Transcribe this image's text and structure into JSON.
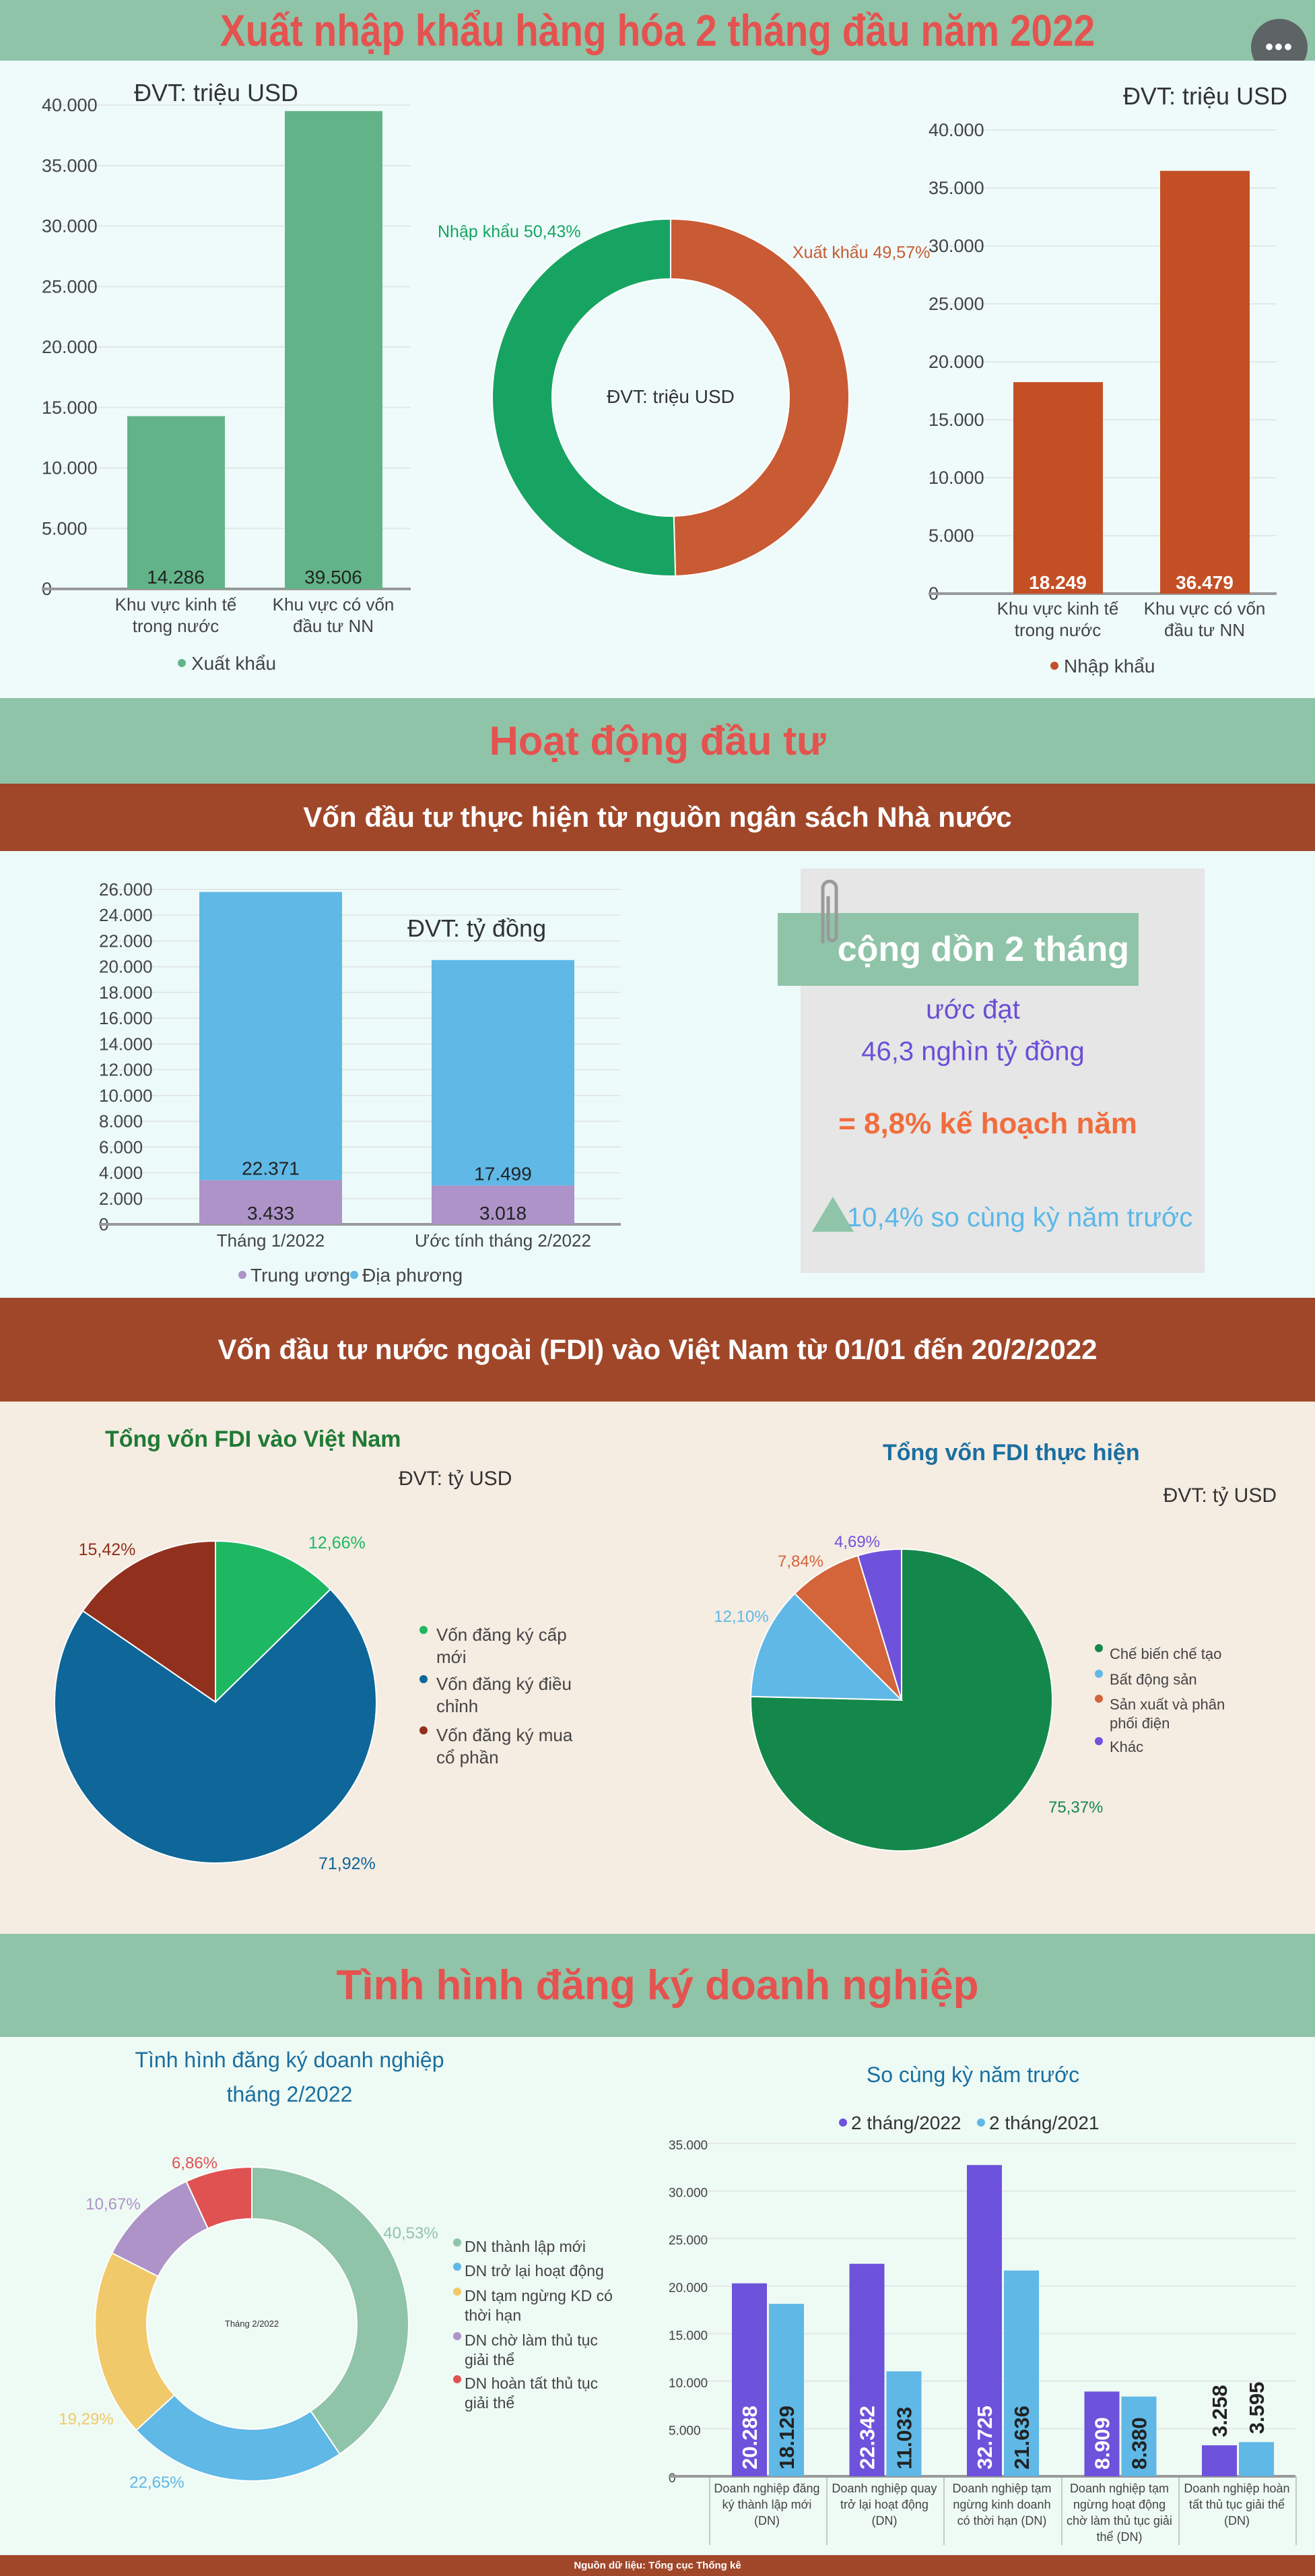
{
  "header": {
    "title": "Xuất nhập khẩu hàng hóa 2 tháng đầu năm 2022",
    "more_label": "•••"
  },
  "section_invest": {
    "title": "Hoạt động đầu tư",
    "subtitle": "Vốn đầu tư thực hiện từ nguồn ngân sách Nhà nước"
  },
  "info_box": {
    "label": "cộng dồn 2 tháng",
    "line1": "ước đạt",
    "line2": "46,3 nghìn tỷ đồng",
    "line3": "= 8,8% kế hoạch năm",
    "line4": "10,4% so cùng kỳ năm trước"
  },
  "section_fdi": {
    "title": "Vốn đầu tư nước ngoài (FDI) vào Việt Nam từ 01/01 đến 20/2/2022"
  },
  "section_business": {
    "title": "Tình hình đăng ký doanh nghiệp"
  },
  "footer": {
    "source": "Nguồn dữ liệu: Tổng cục Thống kê"
  },
  "colors": {
    "green_band": "#8fc4a8",
    "brown_band": "#a0472a",
    "title_red": "#e4534f"
  },
  "chart_data": [
    {
      "id": "export-bars",
      "type": "bar",
      "unit": "ĐVT: triệu USD",
      "categories": [
        "Khu vực kinh tế|trong nước",
        "Khu vực có vốn|đầu tư NN"
      ],
      "series": [
        {
          "name": "Xuất khẩu",
          "values": [
            14286,
            39506
          ],
          "labels": [
            "14.286",
            "39.506"
          ],
          "color": "#62b488"
        }
      ],
      "yticks": [
        "0",
        "5.000",
        "10.000",
        "15.000",
        "20.000",
        "25.000",
        "30.000",
        "35.000",
        "40.000"
      ],
      "ylim": [
        0,
        40000
      ],
      "legend": "bottom"
    },
    {
      "id": "trade-donut",
      "type": "pie",
      "center_label": "ĐVT: triệu USD",
      "slices": [
        {
          "name": "Nhập khẩu",
          "value": 50.43,
          "label": "Nhập khẩu 50,43%",
          "color": "#17a463"
        },
        {
          "name": "Xuất khẩu",
          "value": 49.57,
          "label": "Xuất khẩu 49,57%",
          "color": "#c85a34"
        }
      ]
    },
    {
      "id": "import-bars",
      "type": "bar",
      "unit": "ĐVT: triệu USD",
      "categories": [
        "Khu vực kinh tế|trong nước",
        "Khu vực có vốn|đầu tư NN"
      ],
      "series": [
        {
          "name": "Nhập khẩu",
          "values": [
            18249,
            36479
          ],
          "labels": [
            "18.249",
            "36.479"
          ],
          "color": "#c44f25"
        }
      ],
      "yticks": [
        "0",
        "5.000",
        "10.000",
        "15.000",
        "20.000",
        "25.000",
        "30.000",
        "35.000",
        "40.000"
      ],
      "ylim": [
        0,
        40000
      ],
      "legend": "bottom"
    },
    {
      "id": "budget-bars",
      "type": "bar",
      "stacked": true,
      "unit": "ĐVT:  tỷ đồng",
      "categories": [
        "Tháng 1/2022",
        "Ước tính tháng 2/2022"
      ],
      "series": [
        {
          "name": "Trung ương",
          "values": [
            3433,
            3018
          ],
          "labels": [
            "3.433",
            "3.018"
          ],
          "color": "#ad93c8"
        },
        {
          "name": "Địa phương",
          "values": [
            22371,
            17499
          ],
          "labels": [
            "22.371",
            "17.499"
          ],
          "color": "#5fb8e6"
        }
      ],
      "yticks": [
        "0",
        "2.000",
        "4.000",
        "6.000",
        "8.000",
        "10.000",
        "12.000",
        "14.000",
        "16.000",
        "18.000",
        "20.000",
        "22.000",
        "24.000",
        "26.000"
      ],
      "ylim": [
        0,
        26000
      ],
      "legend": "bottom"
    },
    {
      "id": "fdi-total-pie",
      "type": "pie",
      "title": "Tổng vốn FDI vào Việt Nam",
      "unit": "ĐVT:  tỷ USD",
      "slices": [
        {
          "name": "Vốn đăng ký cấp|mới",
          "value": 12.66,
          "label": "12,66%",
          "color": "#1fb862"
        },
        {
          "name": "Vốn đăng ký điều|chỉnh",
          "value": 71.92,
          "label": "71,92%",
          "color": "#0e6699"
        },
        {
          "name": "Vốn đăng ký mua|cổ phần",
          "value": 15.42,
          "label": "15,42%",
          "color": "#92301e"
        }
      ],
      "legend": "right"
    },
    {
      "id": "fdi-disbursed-pie",
      "type": "pie",
      "title": "Tổng vốn FDI thực hiện",
      "unit": "ĐVT:  tỷ USD",
      "slices": [
        {
          "name": "Chế biến chế tạo",
          "value": 75.37,
          "label": "75,37%",
          "color": "#14884a"
        },
        {
          "name": "Bất động sản",
          "value": 12.1,
          "label": "12,10%",
          "color": "#5fb8e6"
        },
        {
          "name": "Sản xuất và phân|phối điện",
          "value": 7.84,
          "label": "7,84%",
          "color": "#d4643a"
        },
        {
          "name": "Khác",
          "value": 4.69,
          "label": "4,69%",
          "color": "#6f52dc"
        }
      ],
      "legend": "right"
    },
    {
      "id": "business-donut",
      "type": "pie",
      "title": "Tình hình đăng ký doanh nghiệp|tháng 2/2022",
      "center_label": "Tháng 2/2022",
      "slices": [
        {
          "name": "DN thành lập mới",
          "value": 40.53,
          "label": "40,53%",
          "color": "#8fc4a8"
        },
        {
          "name": "DN trở lại hoạt động",
          "value": 22.65,
          "label": "22,65%",
          "color": "#5fb8e6"
        },
        {
          "name": "DN tạm ngừng KD có|thời hạn",
          "value": 19.29,
          "label": "19,29%",
          "color": "#f0c96a"
        },
        {
          "name": "DN chờ làm thủ tục|giải thể",
          "value": 10.67,
          "label": "10,67%",
          "color": "#ad93c8"
        },
        {
          "name": "DN hoàn tất thủ tục|giải thể",
          "value": 6.86,
          "label": "6,86%",
          "color": "#e05252"
        }
      ],
      "legend": "right"
    },
    {
      "id": "business-bars",
      "type": "bar",
      "title": "So cùng kỳ năm trước",
      "categories": [
        "Doanh nghiệp đăng|ký thành lập mới|(DN)",
        "Doanh nghiệp quay|trở lại hoạt động|(DN)",
        "Doanh nghiệp tạm|ngừng kinh doanh|có thời hạn (DN)",
        "Doanh nghiệp tạm|ngừng hoạt động|chờ làm thủ tục giải|thể (DN)",
        "Doanh nghiệp hoàn|tất thủ tục giải thể|(DN)"
      ],
      "series": [
        {
          "name": "2 tháng/2022",
          "values": [
            20288,
            22342,
            32725,
            8909,
            3258
          ],
          "labels": [
            "20.288",
            "22.342",
            "32.725",
            "8.909",
            "3.258"
          ],
          "color": "#6d52dc"
        },
        {
          "name": "2 tháng/2021",
          "values": [
            18129,
            11033,
            21636,
            8380,
            3595
          ],
          "labels": [
            "18.129",
            "11.033",
            "21.636",
            "8.380",
            "3.595"
          ],
          "color": "#5fb8e6"
        }
      ],
      "yticks": [
        "0",
        "5.000",
        "10.000",
        "15.000",
        "20.000",
        "25.000",
        "30.000",
        "35.000"
      ],
      "ylim": [
        0,
        35000
      ],
      "legend": "top"
    }
  ]
}
